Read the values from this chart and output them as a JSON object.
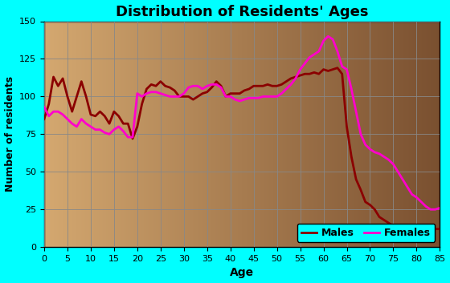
{
  "title": "Distribution of Residents' Ages",
  "xlabel": "Age",
  "ylabel": "Number of residents",
  "xlim": [
    0,
    85
  ],
  "ylim": [
    0,
    150
  ],
  "xticks": [
    0,
    5,
    10,
    15,
    20,
    25,
    30,
    35,
    40,
    45,
    50,
    55,
    60,
    65,
    70,
    75,
    80,
    85
  ],
  "yticks": [
    0,
    25,
    50,
    75,
    100,
    125,
    150
  ],
  "background_outer": "#00FFFF",
  "background_inner_left": "#D4A870",
  "background_inner_right": "#7A5030",
  "male_color": "#8B0000",
  "female_color": "#FF00CC",
  "males_x": [
    0,
    1,
    2,
    3,
    4,
    5,
    6,
    7,
    8,
    9,
    10,
    11,
    12,
    13,
    14,
    15,
    16,
    17,
    18,
    19,
    20,
    21,
    22,
    23,
    24,
    25,
    26,
    27,
    28,
    29,
    30,
    31,
    32,
    33,
    34,
    35,
    36,
    37,
    38,
    39,
    40,
    41,
    42,
    43,
    44,
    45,
    46,
    47,
    48,
    49,
    50,
    51,
    52,
    53,
    54,
    55,
    56,
    57,
    58,
    59,
    60,
    61,
    62,
    63,
    64,
    65,
    66,
    67,
    68,
    69,
    70,
    71,
    72,
    73,
    74,
    75,
    76,
    77,
    78,
    79,
    80,
    81,
    82,
    83,
    84,
    85
  ],
  "males_y": [
    85,
    95,
    113,
    107,
    112,
    100,
    90,
    100,
    110,
    100,
    88,
    87,
    90,
    87,
    82,
    90,
    87,
    82,
    82,
    72,
    80,
    95,
    105,
    108,
    107,
    110,
    107,
    106,
    104,
    100,
    100,
    100,
    98,
    100,
    102,
    103,
    106,
    110,
    107,
    100,
    102,
    102,
    102,
    104,
    105,
    107,
    107,
    107,
    108,
    107,
    107,
    108,
    110,
    112,
    113,
    114,
    115,
    115,
    116,
    115,
    118,
    117,
    118,
    119,
    115,
    80,
    60,
    45,
    38,
    30,
    28,
    25,
    20,
    18,
    16,
    14,
    12,
    11,
    10,
    9,
    9,
    9,
    10,
    11,
    12,
    12
  ],
  "females_x": [
    0,
    1,
    2,
    3,
    4,
    5,
    6,
    7,
    8,
    9,
    10,
    11,
    12,
    13,
    14,
    15,
    16,
    17,
    18,
    19,
    20,
    21,
    22,
    23,
    24,
    25,
    26,
    27,
    28,
    29,
    30,
    31,
    32,
    33,
    34,
    35,
    36,
    37,
    38,
    39,
    40,
    41,
    42,
    43,
    44,
    45,
    46,
    47,
    48,
    49,
    50,
    51,
    52,
    53,
    54,
    55,
    56,
    57,
    58,
    59,
    60,
    61,
    62,
    63,
    64,
    65,
    66,
    67,
    68,
    69,
    70,
    71,
    72,
    73,
    74,
    75,
    76,
    77,
    78,
    79,
    80,
    81,
    82,
    83,
    84,
    85
  ],
  "females_y": [
    93,
    87,
    90,
    90,
    88,
    85,
    82,
    80,
    85,
    82,
    80,
    78,
    78,
    76,
    75,
    78,
    80,
    77,
    73,
    73,
    102,
    100,
    102,
    103,
    103,
    102,
    101,
    100,
    100,
    100,
    102,
    106,
    107,
    107,
    105,
    107,
    108,
    108,
    106,
    100,
    100,
    98,
    97,
    98,
    99,
    99,
    99,
    100,
    100,
    100,
    100,
    102,
    105,
    108,
    112,
    118,
    122,
    126,
    128,
    130,
    137,
    140,
    138,
    130,
    120,
    118,
    105,
    90,
    75,
    68,
    65,
    63,
    62,
    60,
    58,
    55,
    50,
    45,
    40,
    35,
    33,
    30,
    27,
    25,
    25,
    26
  ],
  "legend_bg": "#00FFFF",
  "grid_color": "#888888",
  "tick_fontsize": 8,
  "label_fontsize": 10,
  "title_fontsize": 13
}
